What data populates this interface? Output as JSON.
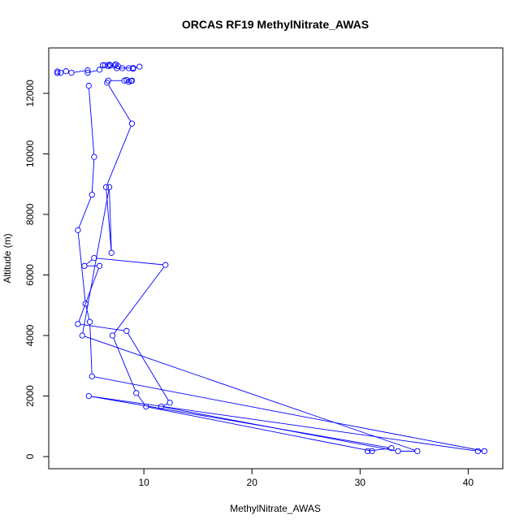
{
  "chart_data": {
    "type": "line",
    "title": "ORCAS RF19 MethylNitrate_AWAS",
    "xlabel": "MethylNitrate_AWAS",
    "ylabel": "Altitude (m)",
    "xlim": [
      1.2,
      43.2
    ],
    "ylim": [
      -400,
      13500
    ],
    "x_ticks": [
      10,
      20,
      30,
      40
    ],
    "y_ticks": [
      0,
      2000,
      4000,
      6000,
      8000,
      10000,
      12000
    ],
    "grid": false,
    "legend": "none",
    "marker": "open-circle",
    "color": "#0000ff",
    "series": [
      {
        "points": [
          {
            "x": 4.9,
            "y": 12250
          },
          {
            "x": 5.4,
            "y": 9900
          },
          {
            "x": 5.2,
            "y": 8650
          },
          {
            "x": 3.9,
            "y": 7480
          },
          {
            "x": 4.6,
            "y": 5050
          },
          {
            "x": 5.0,
            "y": 4450
          },
          {
            "x": 5.2,
            "y": 2650
          },
          {
            "x": 41.5,
            "y": 180
          },
          {
            "x": 40.9,
            "y": 180
          },
          {
            "x": 4.9,
            "y": 2000
          },
          {
            "x": 32.9,
            "y": 280
          },
          {
            "x": 30.7,
            "y": 180
          },
          {
            "x": 31.1,
            "y": 180
          },
          {
            "x": 10.2,
            "y": 1650
          },
          {
            "x": 9.3,
            "y": 2100
          },
          {
            "x": 7.1,
            "y": 4000
          },
          {
            "x": 12.0,
            "y": 6330
          },
          {
            "x": 5.4,
            "y": 6560
          },
          {
            "x": 4.5,
            "y": 6300
          },
          {
            "x": 5.9,
            "y": 6300
          },
          {
            "x": 3.9,
            "y": 4380
          },
          {
            "x": 8.4,
            "y": 4150
          },
          {
            "x": 12.4,
            "y": 1780
          },
          {
            "x": 11.6,
            "y": 1650
          },
          {
            "x": 33.5,
            "y": 180
          },
          {
            "x": 35.3,
            "y": 180
          },
          {
            "x": 4.3,
            "y": 4000
          },
          {
            "x": 6.8,
            "y": 8900
          },
          {
            "x": 7.0,
            "y": 6730
          },
          {
            "x": 6.5,
            "y": 8900
          },
          {
            "x": 8.9,
            "y": 11000
          },
          {
            "x": 6.6,
            "y": 12350
          },
          {
            "x": 6.7,
            "y": 12420
          },
          {
            "x": 8.2,
            "y": 12420
          },
          {
            "x": 8.6,
            "y": 12380
          },
          {
            "x": 8.4,
            "y": 12440
          },
          {
            "x": 8.8,
            "y": 12410
          },
          {
            "x": 8.9,
            "y": 12420
          }
        ]
      },
      {
        "points": [
          {
            "x": 2.0,
            "y": 12720
          },
          {
            "x": 2.0,
            "y": 12670
          },
          {
            "x": 2.3,
            "y": 12680
          },
          {
            "x": 2.8,
            "y": 12730
          },
          {
            "x": 3.3,
            "y": 12680
          },
          {
            "x": 4.8,
            "y": 12760
          },
          {
            "x": 4.8,
            "y": 12680
          },
          {
            "x": 5.9,
            "y": 12780
          },
          {
            "x": 6.4,
            "y": 12930
          },
          {
            "x": 6.2,
            "y": 12930
          },
          {
            "x": 6.7,
            "y": 12900
          },
          {
            "x": 6.8,
            "y": 12950
          },
          {
            "x": 7.4,
            "y": 12960
          },
          {
            "x": 7.6,
            "y": 12900
          },
          {
            "x": 8.0,
            "y": 12830
          },
          {
            "x": 8.6,
            "y": 12830
          },
          {
            "x": 9.0,
            "y": 12810
          },
          {
            "x": 9.6,
            "y": 12880
          },
          {
            "x": 9.0,
            "y": 12840
          },
          {
            "x": 7.5,
            "y": 12830
          },
          {
            "x": 7.3,
            "y": 12920
          },
          {
            "x": 6.9,
            "y": 12920
          }
        ]
      }
    ]
  }
}
